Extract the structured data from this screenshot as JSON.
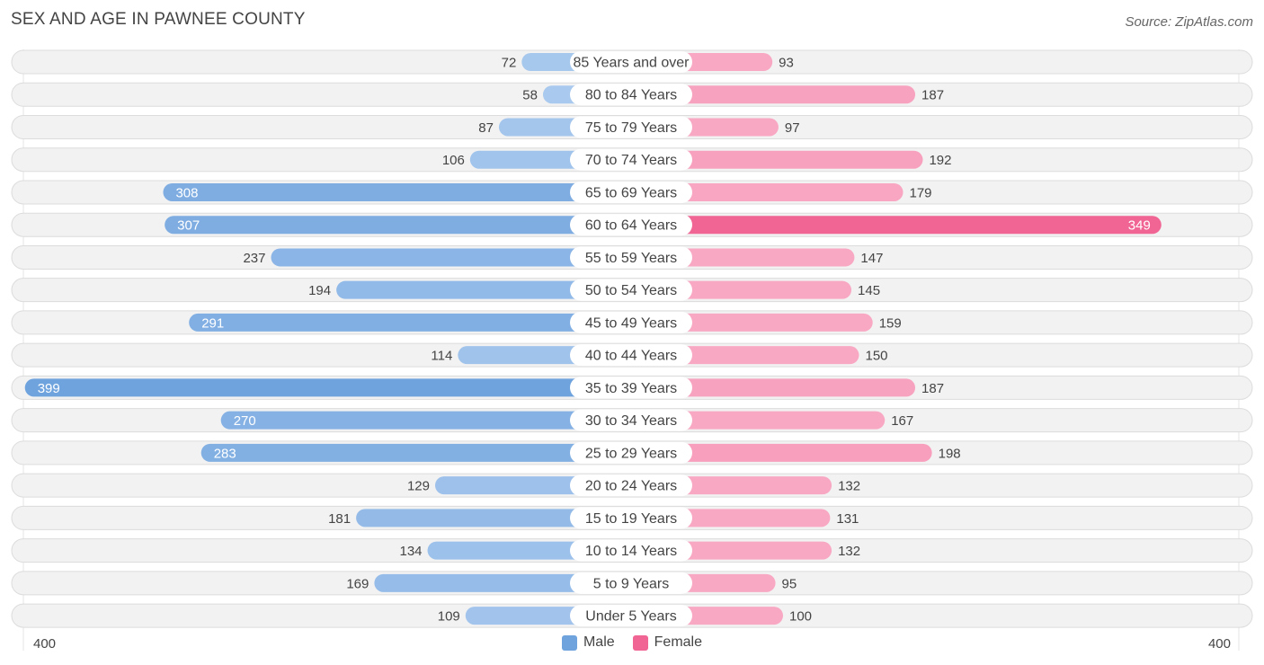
{
  "header": {
    "title": "SEX AND AGE IN PAWNEE COUNTY",
    "source": "Source: ZipAtlas.com"
  },
  "colors": {
    "male": "#6fa3de",
    "male_light": "#a9c9ee",
    "female": "#f06593",
    "female_light": "#f8a8c3",
    "row_background": "#f2f2f2",
    "row_border": "#dcdcdc"
  },
  "chart_data": {
    "type": "bar",
    "orientation": "horizontal-diverging",
    "categories": [
      "85 Years and over",
      "80 to 84 Years",
      "75 to 79 Years",
      "70 to 74 Years",
      "65 to 69 Years",
      "60 to 64 Years",
      "55 to 59 Years",
      "50 to 54 Years",
      "45 to 49 Years",
      "40 to 44 Years",
      "35 to 39 Years",
      "30 to 34 Years",
      "25 to 29 Years",
      "20 to 24 Years",
      "15 to 19 Years",
      "10 to 14 Years",
      "5 to 9 Years",
      "Under 5 Years"
    ],
    "series": [
      {
        "name": "Male",
        "values": [
          72,
          58,
          87,
          106,
          308,
          307,
          237,
          194,
          291,
          114,
          399,
          270,
          283,
          129,
          181,
          134,
          169,
          109
        ]
      },
      {
        "name": "Female",
        "values": [
          93,
          187,
          97,
          192,
          179,
          349,
          147,
          145,
          159,
          150,
          187,
          167,
          198,
          132,
          131,
          132,
          95,
          100
        ]
      }
    ],
    "xlim": [
      -400,
      400
    ],
    "axis_tick_left": "400",
    "axis_tick_right": "400",
    "legend_position": "bottom-center"
  }
}
